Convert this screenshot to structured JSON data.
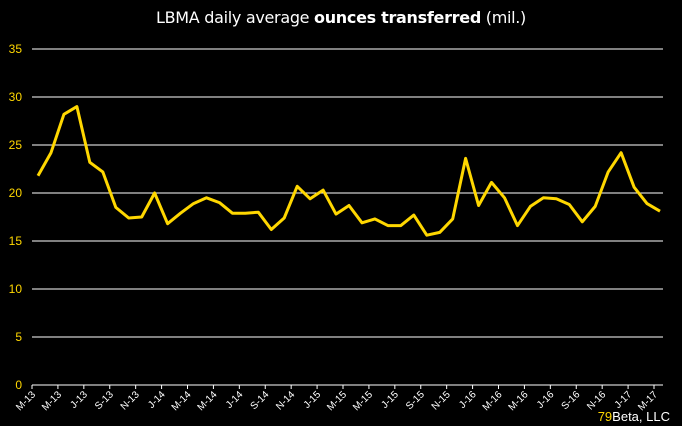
{
  "chart_data": {
    "type": "line",
    "title": "LBMA daily average ounces transferred (mil.)",
    "title_parts": {
      "normal": "LBMA daily average ",
      "bold": "ounces transferred",
      "suffix": " (mil.)"
    },
    "xlabel": "",
    "ylabel": "",
    "ylim": [
      0,
      35
    ],
    "yticks": [
      0,
      5,
      10,
      15,
      20,
      25,
      30,
      35
    ],
    "grid": true,
    "legend": "none",
    "xtick_labels": [
      "M-13",
      "M-13",
      "J-13",
      "S-13",
      "N-13",
      "J-14",
      "M-14",
      "M-14",
      "J-14",
      "S-14",
      "N-14",
      "J-15",
      "M-15",
      "M-15",
      "J-15",
      "S-15",
      "N-15",
      "J-16",
      "M-16",
      "M-16",
      "J-16",
      "S-16",
      "N-16",
      "J-17",
      "M-17"
    ],
    "x": [
      "Mar-13",
      "Apr-13",
      "May-13",
      "Jun-13",
      "Jul-13",
      "Aug-13",
      "Sep-13",
      "Oct-13",
      "Nov-13",
      "Dec-13",
      "Jan-14",
      "Feb-14",
      "Mar-14",
      "Apr-14",
      "May-14",
      "Jun-14",
      "Jul-14",
      "Aug-14",
      "Sep-14",
      "Oct-14",
      "Nov-14",
      "Dec-14",
      "Jan-15",
      "Feb-15",
      "Mar-15",
      "Apr-15",
      "May-15",
      "Jun-15",
      "Jul-15",
      "Aug-15",
      "Sep-15",
      "Oct-15",
      "Nov-15",
      "Dec-15",
      "Jan-16",
      "Feb-16",
      "Mar-16",
      "Apr-16",
      "May-16",
      "Jun-16",
      "Jul-16",
      "Aug-16",
      "Sep-16",
      "Oct-16",
      "Nov-16",
      "Dec-16",
      "Jan-17",
      "Feb-17",
      "Mar-17"
    ],
    "series": [
      {
        "name": "Ounces transferred (mil.)",
        "color": "#ffd700",
        "values": [
          21.8,
          24.2,
          28.2,
          29.0,
          23.2,
          22.2,
          18.5,
          17.4,
          17.5,
          20.0,
          16.8,
          17.9,
          18.9,
          19.5,
          19.0,
          17.9,
          17.9,
          18.0,
          16.2,
          17.4,
          20.7,
          19.4,
          20.3,
          17.8,
          18.7,
          16.9,
          17.3,
          16.6,
          16.6,
          17.7,
          15.6,
          15.9,
          17.3,
          23.6,
          18.7,
          21.1,
          19.5,
          16.6,
          18.6,
          19.5,
          19.4,
          18.8,
          17.0,
          18.6,
          22.2,
          24.2,
          20.6,
          18.9,
          18.1
        ]
      }
    ]
  },
  "credit": {
    "number": "79",
    "text": "Beta, LLC"
  },
  "colors": {
    "background": "#000000",
    "line": "#ffd700",
    "grid": "#ffffff",
    "ytick": "#ffd700",
    "xtick": "#ffffff"
  }
}
